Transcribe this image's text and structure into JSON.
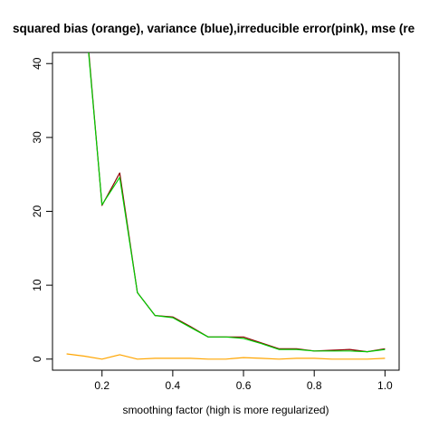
{
  "chart_data": {
    "type": "line",
    "title": "squared bias (orange), variance (blue),irreducible error(pink), mse (re",
    "xlabel": "smoothing factor (high is more regularized)",
    "ylabel": "",
    "xlim": [
      0.06,
      1.04
    ],
    "ylim": [
      -1.5,
      41.5
    ],
    "xticks": [
      0.2,
      0.4,
      0.6,
      0.8,
      1.0
    ],
    "xtick_labels": [
      "0.2",
      "0.4",
      "0.6",
      "0.8",
      "1.0"
    ],
    "yticks": [
      0,
      10,
      20,
      30,
      40
    ],
    "ytick_labels": [
      "0",
      "10",
      "20",
      "30",
      "40"
    ],
    "grid": false,
    "legend": "none",
    "series": [
      {
        "color": "#ffa500",
        "x": [
          0.1,
          0.15,
          0.2,
          0.25,
          0.3,
          0.35,
          0.4,
          0.45,
          0.5,
          0.55,
          0.6,
          0.65,
          0.7,
          0.75,
          0.8,
          0.85,
          0.9,
          0.95,
          1.0
        ],
        "y": [
          0.7,
          0.4,
          0.0,
          0.6,
          0.0,
          0.1,
          0.1,
          0.1,
          0.0,
          0.0,
          0.2,
          0.1,
          0.0,
          0.1,
          0.1,
          0.0,
          0.0,
          0.0,
          0.1
        ]
      },
      {
        "color": "#8b0000",
        "x": [
          0.16,
          0.2,
          0.25,
          0.3,
          0.35,
          0.4,
          0.45,
          0.5,
          0.55,
          0.6,
          0.65,
          0.7,
          0.75,
          0.8,
          0.85,
          0.9,
          0.95,
          1.0
        ],
        "y": [
          43.0,
          20.8,
          25.2,
          9.0,
          5.9,
          5.7,
          4.4,
          3.0,
          3.0,
          3.0,
          2.2,
          1.4,
          1.4,
          1.1,
          1.2,
          1.3,
          1.0,
          1.4
        ]
      },
      {
        "color": "#00cc00",
        "x": [
          0.16,
          0.2,
          0.25,
          0.3,
          0.35,
          0.4,
          0.45,
          0.5,
          0.55,
          0.6,
          0.65,
          0.7,
          0.75,
          0.8,
          0.85,
          0.9,
          0.95,
          1.0
        ],
        "y": [
          42.6,
          20.9,
          24.6,
          9.0,
          5.9,
          5.6,
          4.3,
          3.0,
          3.0,
          2.8,
          2.1,
          1.3,
          1.3,
          1.1,
          1.1,
          1.1,
          1.0,
          1.3
        ]
      }
    ]
  }
}
